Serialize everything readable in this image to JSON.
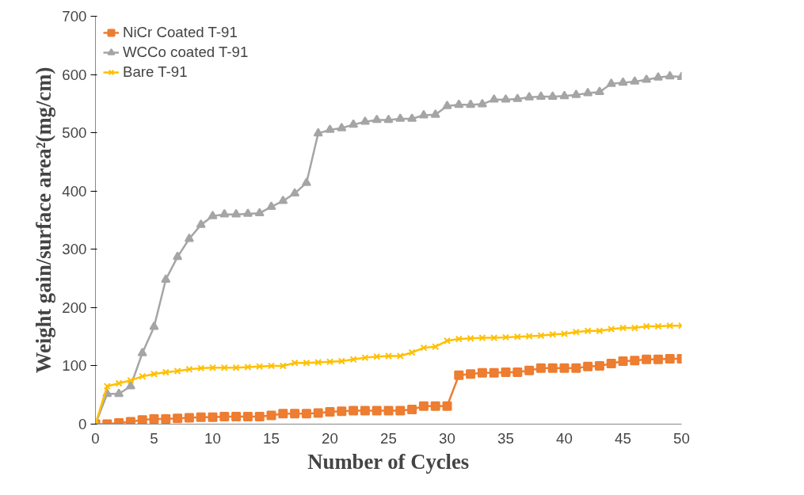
{
  "chart_data": {
    "type": "line",
    "xlabel": "Number of Cycles",
    "ylabel": "Weight gain/surface area²(mg/cm)",
    "x": [
      0,
      1,
      2,
      3,
      4,
      5,
      6,
      7,
      8,
      9,
      10,
      11,
      12,
      13,
      14,
      15,
      16,
      17,
      18,
      19,
      20,
      21,
      22,
      23,
      24,
      25,
      26,
      27,
      28,
      29,
      30,
      31,
      32,
      33,
      34,
      35,
      36,
      37,
      38,
      39,
      40,
      41,
      42,
      43,
      44,
      45,
      46,
      47,
      48,
      49,
      50
    ],
    "series": [
      {
        "name": "NiCr Coated T-91",
        "color": "#ed7d31",
        "marker": "square",
        "values": [
          0,
          0,
          2,
          4,
          7,
          9,
          9,
          10,
          11,
          12,
          12,
          13,
          13,
          13,
          13,
          15,
          18,
          18,
          18,
          19,
          21,
          22,
          23,
          23,
          23,
          23,
          23,
          25,
          31,
          31,
          31,
          84,
          86,
          88,
          88,
          89,
          89,
          92,
          96,
          96,
          96,
          96,
          99,
          100,
          104,
          108,
          109,
          111,
          111,
          112,
          112
        ]
      },
      {
        "name": "WCCo coated T-91",
        "color": "#a5a5a5",
        "marker": "triangle",
        "values": [
          0,
          52,
          52,
          65,
          122,
          167,
          248,
          287,
          318,
          342,
          357,
          360,
          360,
          361,
          362,
          373,
          383,
          396,
          414,
          499,
          505,
          508,
          514,
          519,
          522,
          522,
          524,
          524,
          530,
          531,
          546,
          548,
          548,
          549,
          557,
          557,
          558,
          561,
          562,
          562,
          563,
          565,
          568,
          570,
          584,
          586,
          588,
          591,
          595,
          597,
          596
        ]
      },
      {
        "name": "Bare T-91",
        "color": "#ffc000",
        "marker": "cross",
        "values": [
          0,
          65,
          70,
          75,
          82,
          86,
          89,
          91,
          94,
          96,
          97,
          97,
          97,
          98,
          99,
          100,
          100,
          105,
          105,
          106,
          107,
          108,
          111,
          114,
          116,
          117,
          117,
          123,
          131,
          133,
          143,
          146,
          147,
          148,
          148,
          149,
          150,
          151,
          152,
          154,
          155,
          158,
          160,
          160,
          163,
          165,
          165,
          168,
          168,
          169,
          169
        ]
      }
    ],
    "xlim": [
      0,
      50
    ],
    "xticks": [
      0,
      5,
      10,
      15,
      20,
      25,
      30,
      35,
      40,
      45,
      50
    ],
    "ylim": [
      0,
      700
    ],
    "yticks": [
      0,
      100,
      200,
      300,
      400,
      500,
      600,
      700
    ],
    "grid": false,
    "legend": "top left"
  }
}
